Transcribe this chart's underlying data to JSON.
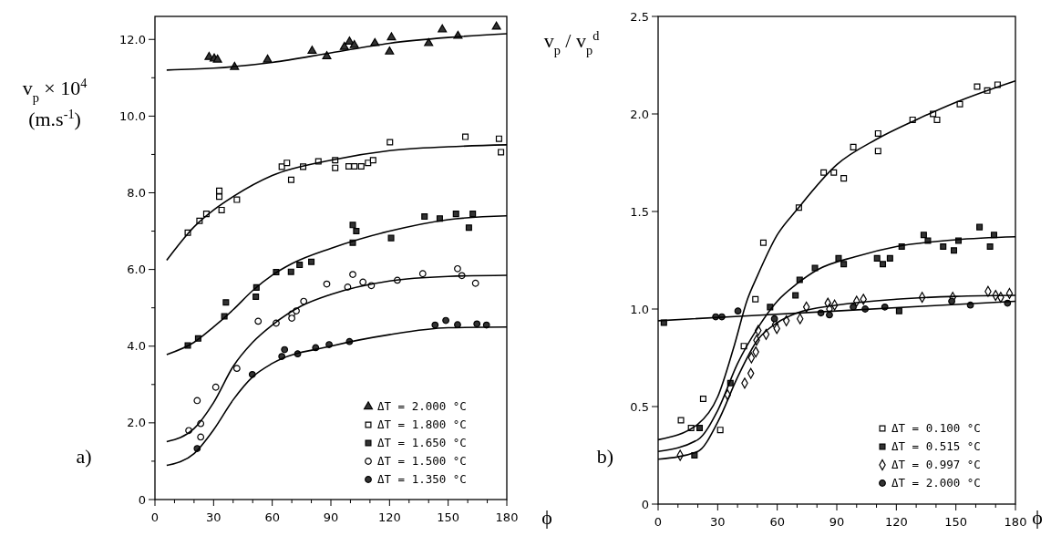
{
  "chart_data": [
    {
      "type": "scatter",
      "ylabel": "v$_{p}$ × 10$^{4}$\n(m.s$^{-1}$)",
      "xlabel": "ϕ",
      "annotations": [
        "a)"
      ],
      "xlim": [
        0,
        180
      ],
      "ylim": [
        0,
        12.6
      ],
      "legend": "bottom right",
      "grid": false,
      "xticks": [
        0,
        {
          "value": 10,
          "label": null
        },
        {
          "value": 20,
          "label": null
        },
        30,
        {
          "value": 40,
          "label": null
        },
        {
          "value": 50,
          "label": null
        },
        60,
        {
          "value": 70,
          "label": null
        },
        {
          "value": 80,
          "label": null
        },
        90,
        {
          "value": 100,
          "label": null
        },
        {
          "value": 110,
          "label": null
        },
        120,
        {
          "value": 130,
          "label": null
        },
        {
          "value": 140,
          "label": null
        },
        150,
        {
          "value": 160,
          "label": null
        },
        {
          "value": 170,
          "label": null
        },
        180
      ],
      "yticks": [
        0,
        {
          "value": 1,
          "label": null
        },
        {
          "value": 2,
          "label": "2.0"
        },
        {
          "value": 3,
          "label": null
        },
        {
          "value": 4,
          "label": "4.0"
        },
        {
          "value": 5,
          "label": null
        },
        {
          "value": 6,
          "label": "6.0"
        },
        {
          "value": 7,
          "label": null
        },
        {
          "value": 8,
          "label": "8.0"
        },
        {
          "value": 9,
          "label": null
        },
        {
          "value": 10,
          "label": "10.0"
        },
        {
          "value": 11,
          "label": null
        },
        {
          "value": 12,
          "label": "12.0"
        }
      ],
      "series": [
        {
          "name": "ΔT = 2.000 °C",
          "marker": "triangle",
          "color": "#333333",
          "x": [
            27.7,
            30.3,
            32,
            40.7,
            57.6,
            80.4,
            87.9,
            96.9,
            99.5,
            102,
            112.5,
            121,
            120,
            140,
            147,
            155,
            174.7
          ],
          "values": [
            11.54,
            11.5,
            11.47,
            11.28,
            11.47,
            11.7,
            11.56,
            11.8,
            11.94,
            11.85,
            11.9,
            12.05,
            11.68,
            11.9,
            12.26,
            12.09,
            12.33
          ]
        },
        {
          "name": "ΔT = 1.800 °C",
          "marker": "square",
          "color": "#ffffff",
          "x": [
            16.8,
            22.8,
            26.3,
            32.9,
            32.9,
            34.1,
            41.9,
            64.9,
            67.5,
            69.7,
            75.8,
            83.6,
            92.2,
            92.2,
            99.1,
            102,
            105.5,
            109,
            111.6,
            120.2,
            158.8,
            176,
            177
          ],
          "values": [
            6.96,
            7.27,
            7.45,
            8.05,
            7.9,
            7.55,
            7.82,
            8.68,
            8.78,
            8.34,
            8.68,
            8.82,
            8.85,
            8.65,
            8.69,
            8.69,
            8.69,
            8.78,
            8.85,
            9.32,
            9.46,
            9.41,
            9.06
          ]
        },
        {
          "name": "ΔT = 1.650 °C",
          "marker": "square",
          "color": "#333333",
          "x": [
            16.8,
            22.1,
            35.5,
            36.3,
            51.6,
            51.9,
            62,
            69.6,
            74,
            80,
            101.2,
            103,
            101.2,
            120.8,
            137.9,
            145.7,
            154,
            162.6,
            160.6
          ],
          "values": [
            4.02,
            4.2,
            4.78,
            5.14,
            5.29,
            5.53,
            5.93,
            5.94,
            6.12,
            6.2,
            7.16,
            7.0,
            6.7,
            6.82,
            7.38,
            7.33,
            7.45,
            7.45,
            7.09
          ]
        },
        {
          "name": "ΔT = 1.500 °C",
          "marker": "circle",
          "color": "#ffffff",
          "x": [
            17.3,
            21.6,
            23.4,
            23.4,
            31.1,
            41.9,
            52.8,
            62,
            70,
            70,
            72.3,
            76.1,
            87.9,
            98.6,
            101.2,
            106.4,
            110.7,
            124,
            137,
            154.8,
            157,
            164
          ],
          "values": [
            1.8,
            2.58,
            1.98,
            1.63,
            2.93,
            3.42,
            4.65,
            4.6,
            4.84,
            4.73,
            4.92,
            5.17,
            5.62,
            5.54,
            5.87,
            5.67,
            5.58,
            5.72,
            5.89,
            6.02,
            5.84,
            5.64
          ]
        },
        {
          "name": "ΔT = 1.350 °C",
          "marker": "circle",
          "color": "#333333",
          "x": [
            21.6,
            49.8,
            64.9,
            66.3,
            73,
            82.2,
            89.1,
            99.5,
            143.3,
            148.8,
            154.8,
            164.7,
            169.6
          ],
          "values": [
            1.33,
            3.26,
            3.73,
            3.91,
            3.8,
            3.96,
            4.04,
            4.12,
            4.55,
            4.67,
            4.56,
            4.58,
            4.55
          ]
        },
        {
          "type": "line",
          "marker": "none",
          "color": "#000000",
          "x": [
            6,
            30,
            60,
            90,
            120,
            150,
            180
          ],
          "values": [
            11.2,
            11.25,
            11.4,
            11.65,
            11.9,
            12.05,
            12.15
          ]
        },
        {
          "type": "line",
          "marker": "none",
          "color": "#000000",
          "x": [
            6,
            20,
            30,
            40,
            60,
            90,
            120,
            150,
            180
          ],
          "values": [
            6.24,
            7.11,
            7.55,
            7.9,
            8.45,
            8.85,
            9.1,
            9.2,
            9.25
          ]
        },
        {
          "type": "line",
          "marker": "none",
          "color": "#000000",
          "x": [
            6,
            20,
            30,
            40,
            50,
            60,
            70,
            90,
            120,
            150,
            180
          ],
          "values": [
            3.78,
            4.1,
            4.5,
            4.95,
            5.45,
            5.85,
            6.15,
            6.55,
            7.0,
            7.3,
            7.4
          ]
        },
        {
          "type": "line",
          "marker": "none",
          "color": "#000000",
          "x": [
            6,
            20,
            30,
            40,
            50,
            60,
            75,
            90,
            120,
            150,
            180
          ],
          "values": [
            1.51,
            1.85,
            2.53,
            3.47,
            4.1,
            4.55,
            5.05,
            5.35,
            5.7,
            5.82,
            5.85
          ]
        },
        {
          "type": "line",
          "marker": "none",
          "color": "#000000",
          "x": [
            6,
            20,
            30,
            40,
            50,
            60,
            90,
            120,
            150,
            180
          ],
          "values": [
            0.89,
            1.2,
            1.82,
            2.6,
            3.2,
            3.55,
            4.0,
            4.3,
            4.48,
            4.5
          ]
        }
      ]
    },
    {
      "type": "scatter",
      "ylabel": "v$_{p}$ / v$_{p}$$^{d}$",
      "xlabel": "ϕ",
      "annotations": [
        "b)"
      ],
      "xlim": [
        0,
        180
      ],
      "ylim": [
        0,
        2.5
      ],
      "legend": "bottom right",
      "grid": false,
      "xticks": [
        0,
        {
          "value": 10,
          "label": null
        },
        {
          "value": 20,
          "label": null
        },
        30,
        {
          "value": 40,
          "label": null
        },
        {
          "value": 50,
          "label": null
        },
        60,
        {
          "value": 70,
          "label": null
        },
        {
          "value": 80,
          "label": null
        },
        90,
        {
          "value": 100,
          "label": null
        },
        {
          "value": 110,
          "label": null
        },
        120,
        {
          "value": 130,
          "label": null
        },
        {
          "value": 140,
          "label": null
        },
        150,
        {
          "value": 160,
          "label": null
        },
        {
          "value": 170,
          "label": null
        },
        180
      ],
      "yticks": [
        0,
        0.5,
        {
          "value": 1,
          "label": "1.0"
        },
        1.5,
        {
          "value": 2,
          "label": "2.0"
        },
        2.5
      ],
      "series": [
        {
          "name": "ΔT = 0.100 °C",
          "marker": "square",
          "color": "#ffffff",
          "x": [
            11.5,
            16.6,
            22.7,
            31.3,
            43.2,
            49,
            53,
            70.9,
            83.4,
            88.5,
            93.5,
            98.3,
            110.8,
            110.8,
            128.2,
            138.5,
            140.5,
            152,
            160.7,
            165.8,
            171
          ],
          "values": [
            0.43,
            0.39,
            0.54,
            0.38,
            0.81,
            1.05,
            1.34,
            1.52,
            1.7,
            1.7,
            1.67,
            1.83,
            1.9,
            1.81,
            1.97,
            2.0,
            1.97,
            2.05,
            2.14,
            2.12,
            2.15
          ]
        },
        {
          "name": "ΔT = 0.515 °C",
          "marker": "square",
          "color": "#333333",
          "x": [
            2.9,
            18.3,
            20.9,
            36.4,
            56.4,
            69.2,
            71.3,
            79,
            90.9,
            93.5,
            110.3,
            113.2,
            116.8,
            121.4,
            122.7,
            133.8,
            135.9,
            143.6,
            149,
            151.3,
            161.9,
            167.2,
            169.2
          ],
          "values": [
            0.93,
            0.25,
            0.39,
            0.62,
            1.01,
            1.07,
            1.15,
            1.21,
            1.26,
            1.23,
            1.26,
            1.23,
            1.26,
            0.99,
            1.32,
            1.38,
            1.35,
            1.32,
            1.3,
            1.35,
            1.42,
            1.32,
            1.38
          ]
        },
        {
          "name": "ΔT = 0.997 °C",
          "marker": "diamond",
          "color": "#ffffff",
          "x": [
            11.1,
            35,
            43.6,
            46.7,
            47,
            49.2,
            49.6,
            50.4,
            54.4,
            59,
            59.8,
            64.6,
            71.5,
            74.7,
            85.5,
            86.3,
            88.9,
            100,
            103.4,
            133,
            148.4,
            166.2,
            170,
            172.6,
            177
          ],
          "values": [
            0.25,
            0.56,
            0.62,
            0.67,
            0.75,
            0.78,
            0.84,
            0.89,
            0.87,
            0.92,
            0.9,
            0.94,
            0.95,
            1.01,
            1.03,
            1.0,
            1.02,
            1.04,
            1.05,
            1.06,
            1.06,
            1.09,
            1.07,
            1.06,
            1.08
          ]
        },
        {
          "name": "ΔT = 2.000 °C",
          "marker": "circle",
          "color": "#333333",
          "x": [
            29,
            32.1,
            40.2,
            58.6,
            82,
            86.3,
            98.3,
            104.3,
            114.2,
            147.9,
            157.3,
            176
          ],
          "values": [
            0.96,
            0.96,
            0.99,
            0.95,
            0.98,
            0.97,
            1.01,
            1.0,
            1.01,
            1.04,
            1.02,
            1.03
          ]
        },
        {
          "type": "line",
          "marker": "none",
          "color": "#000000",
          "x": [
            0,
            20,
            30,
            38,
            45,
            50,
            60,
            70,
            90,
            110,
            130,
            150,
            180
          ],
          "values": [
            0.33,
            0.41,
            0.55,
            0.8,
            1.05,
            1.17,
            1.38,
            1.51,
            1.74,
            1.87,
            1.97,
            2.06,
            2.17
          ]
        },
        {
          "type": "line",
          "marker": "none",
          "color": "#000000",
          "x": [
            0,
            20,
            30,
            40,
            50,
            60,
            70,
            80,
            100,
            120,
            150,
            180
          ],
          "values": [
            0.27,
            0.33,
            0.48,
            0.72,
            0.9,
            1.04,
            1.13,
            1.2,
            1.27,
            1.32,
            1.355,
            1.37
          ]
        },
        {
          "type": "line",
          "marker": "none",
          "color": "#000000",
          "x": [
            0,
            20,
            30,
            40,
            50,
            60,
            70,
            90,
            120,
            150,
            180
          ],
          "values": [
            0.23,
            0.27,
            0.42,
            0.65,
            0.84,
            0.93,
            0.98,
            1.02,
            1.05,
            1.065,
            1.07
          ]
        },
        {
          "type": "line",
          "marker": "none",
          "color": "#000000",
          "x": [
            0,
            90,
            180
          ],
          "values": [
            0.94,
            0.99,
            1.04
          ]
        }
      ]
    }
  ]
}
